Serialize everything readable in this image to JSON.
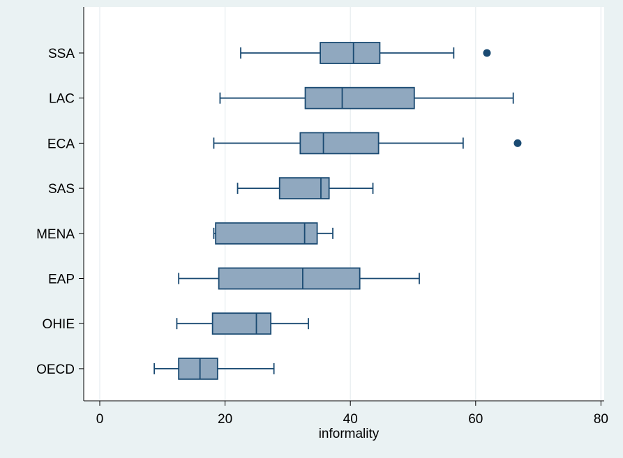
{
  "chart_data": {
    "type": "boxplot",
    "orientation": "horizontal",
    "xlabel": "informality",
    "ylabel": "",
    "title": "",
    "xlim": [
      0,
      80
    ],
    "xticks": [
      0,
      20,
      40,
      60,
      80
    ],
    "grid": true,
    "colors": {
      "background": "#eaf2f3",
      "plot_background": "#ffffff",
      "box_fill": "#90a8bf",
      "box_stroke": "#1a4a72",
      "whisker": "#1a4a72",
      "outlier": "#1a4a72",
      "grid": "#e6ecef"
    },
    "categories": [
      "SSA",
      "LAC",
      "ECA",
      "SAS",
      "MENA",
      "EAP",
      "OHIE",
      "OECD"
    ],
    "boxes": [
      {
        "label": "SSA",
        "whisker_low": 22.5,
        "q1": 35.2,
        "median": 40.5,
        "q3": 44.7,
        "whisker_high": 56.5,
        "outliers": [
          61.8
        ]
      },
      {
        "label": "LAC",
        "whisker_low": 19.2,
        "q1": 32.8,
        "median": 38.7,
        "q3": 50.2,
        "whisker_high": 66.0,
        "outliers": []
      },
      {
        "label": "ECA",
        "whisker_low": 18.2,
        "q1": 32.0,
        "median": 35.7,
        "q3": 44.5,
        "whisker_high": 58.0,
        "outliers": [
          66.7
        ]
      },
      {
        "label": "SAS",
        "whisker_low": 22.0,
        "q1": 28.7,
        "median": 35.3,
        "q3": 36.6,
        "whisker_high": 43.6,
        "outliers": []
      },
      {
        "label": "MENA",
        "whisker_low": 18.2,
        "q1": 18.5,
        "median": 32.7,
        "q3": 34.7,
        "whisker_high": 37.2,
        "outliers": []
      },
      {
        "label": "EAP",
        "whisker_low": 12.6,
        "q1": 19.0,
        "median": 32.4,
        "q3": 41.5,
        "whisker_high": 51.0,
        "outliers": []
      },
      {
        "label": "OHIE",
        "whisker_low": 12.3,
        "q1": 18.0,
        "median": 25.0,
        "q3": 27.3,
        "whisker_high": 33.3,
        "outliers": []
      },
      {
        "label": "OECD",
        "whisker_low": 8.7,
        "q1": 12.6,
        "median": 16.0,
        "q3": 18.8,
        "whisker_high": 27.8,
        "outliers": []
      }
    ]
  }
}
